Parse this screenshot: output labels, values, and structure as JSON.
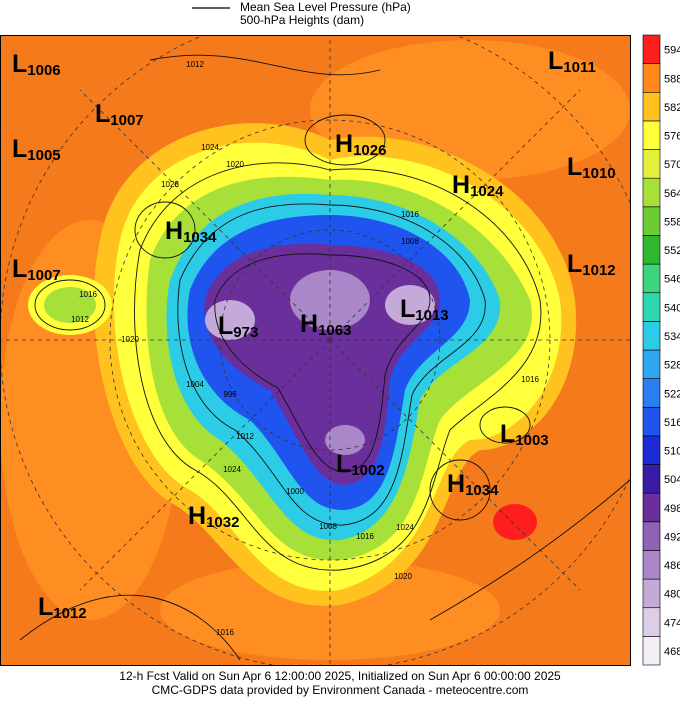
{
  "legend": [
    "Mean Sea Level Pressure (hPa)",
    "500-hPa Heights (dam)"
  ],
  "colorbar": {
    "levels": [
      468,
      474,
      480,
      486,
      492,
      498,
      504,
      510,
      516,
      522,
      528,
      534,
      540,
      546,
      552,
      558,
      564,
      570,
      576,
      582,
      588,
      594
    ],
    "colors": [
      "#f4eef6",
      "#dccde8",
      "#c3aad8",
      "#a987c8",
      "#8f62b6",
      "#6b2f9c",
      "#3c1aa8",
      "#1c2ad8",
      "#1f54ee",
      "#2a7ef2",
      "#2fa6f0",
      "#2ccbe6",
      "#2fd6b4",
      "#3cd47c",
      "#2fb82f",
      "#6ccc34",
      "#a8e03a",
      "#e2f03c",
      "#ffff3c",
      "#ffc21e",
      "#ff8a1a",
      "#ff1e1e"
    ]
  },
  "centers": [
    {
      "kind": "L",
      "pressure": 1006
    },
    {
      "kind": "L",
      "pressure": 1007
    },
    {
      "kind": "L",
      "pressure": 1005
    },
    {
      "kind": "L",
      "pressure": 1007
    },
    {
      "kind": "H",
      "pressure": 1034
    },
    {
      "kind": "H",
      "pressure": 1026
    },
    {
      "kind": "H",
      "pressure": 1024
    },
    {
      "kind": "L",
      "pressure": 1011
    },
    {
      "kind": "L",
      "pressure": 1010
    },
    {
      "kind": "L",
      "pressure": 1012
    },
    {
      "kind": "L",
      "pressure": 973
    },
    {
      "kind": "H",
      "pressure": 1063
    },
    {
      "kind": "L",
      "pressure": 1013
    },
    {
      "kind": "L",
      "pressure": 1003
    },
    {
      "kind": "L",
      "pressure": 1002
    },
    {
      "kind": "H",
      "pressure": 1034
    },
    {
      "kind": "H",
      "pressure": 1032
    },
    {
      "kind": "L",
      "pressure": 1012
    }
  ],
  "contour_labels": [
    1012,
    1024,
    1028,
    1020,
    1016,
    1008,
    1016,
    1012,
    1020,
    1004,
    996,
    1012,
    1024,
    1000,
    1008,
    1016,
    1024,
    1020,
    1016,
    1016
  ],
  "footer": [
    "12-h Fcst Valid on Sun Apr  6 12:00:00 2025, Initialized on Sun Apr  6 00:00:00 2025",
    "CMC-GDPS data provided by Environment Canada - meteocentre.com"
  ]
}
